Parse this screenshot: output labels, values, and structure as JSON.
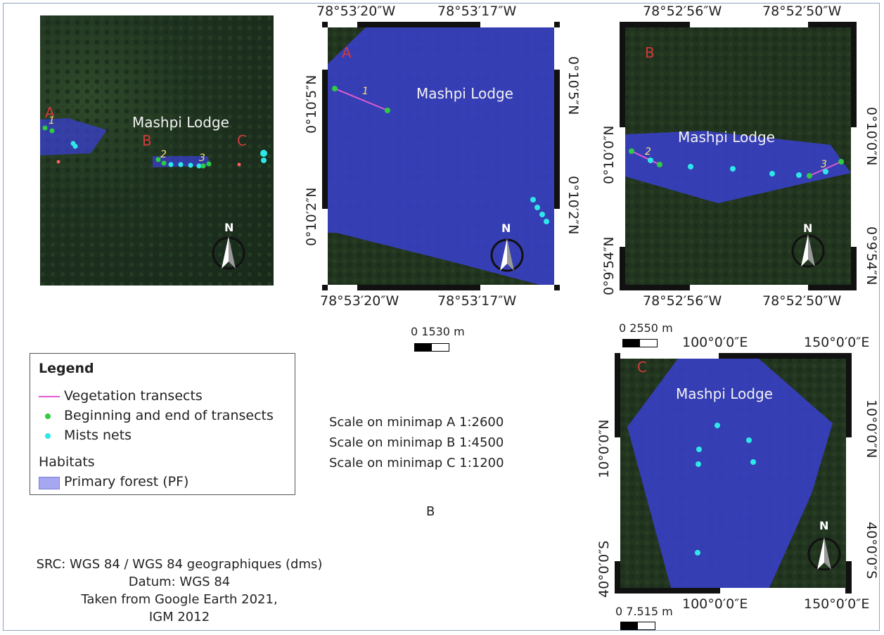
{
  "overview_map": {
    "labels": {
      "a": "A",
      "b": "B",
      "c": "C"
    },
    "title": "Mashpi Lodge",
    "transects": {
      "one": "1",
      "two": "2",
      "three": "3"
    },
    "north": "N"
  },
  "minimap_a": {
    "label": "A",
    "title": "Mashpi Lodge",
    "transect": "1",
    "north": "N",
    "top_coords": [
      "78°53′20″W",
      "78°53′17″W"
    ],
    "bottom_coords": [
      "78°53′20″W",
      "78°53′17″W"
    ],
    "left_coords": [
      "0°10′5″N",
      "0°10′2″N"
    ],
    "right_coords": [
      "0°10′5″N",
      "0°10′2″N"
    ],
    "scale_label": "0 1530 m"
  },
  "minimap_b": {
    "label": "B",
    "title": "Mashpi Lodge",
    "transects": [
      "2",
      "3"
    ],
    "north": "N",
    "top_coords": [
      "78°52′56″W",
      "78°52′50″W"
    ],
    "bottom_coords": [
      "78°52′56″W",
      "78°52′50″W"
    ],
    "left_coords": [
      "0°10′0″N",
      "0°9′54″N"
    ],
    "right_coords": [
      "0°10′0″N",
      "0°9′54″N"
    ],
    "scale_label": "0 2550 m"
  },
  "minimap_c": {
    "label": "C",
    "title": "Mashpi Lodge",
    "north": "N",
    "top_coords": [
      "100°0′0″E",
      "150°0′0″E"
    ],
    "bottom_coords": [
      "100°0′0″E",
      "150°0′0″E"
    ],
    "left_coords": [
      "10°0′0″N",
      "40°0′0″S"
    ],
    "right_coords": [
      "10°0′0″N",
      "40°0′0″S"
    ],
    "scale_label": "0 7.515 m"
  },
  "legend": {
    "title": "Legend",
    "transects": "Vegetation transects",
    "endpoints": "Beginning and end of transects",
    "nets": "Mists nets",
    "habitats": "Habitats",
    "forest": "Primary forest (PF)"
  },
  "scales": {
    "a": "Scale on minimap A 1:2600",
    "b": "Scale on minimap B 1:4500",
    "c": "Scale on minimap C 1:1200"
  },
  "panel_letter": "B",
  "source": {
    "line1": "SRC: WGS 84 /  WGS 84 geographiques (dms)",
    "line2": "Datum: WGS 84",
    "line3": "Taken from Google Earth 2021,",
    "line4": "IGM 2012"
  },
  "colors": {
    "forest": "#3a3fcf",
    "transect": "#e05ad0",
    "endpoint": "#2ecc40",
    "net": "#2ee8e8",
    "label_red": "#d23b3b"
  }
}
